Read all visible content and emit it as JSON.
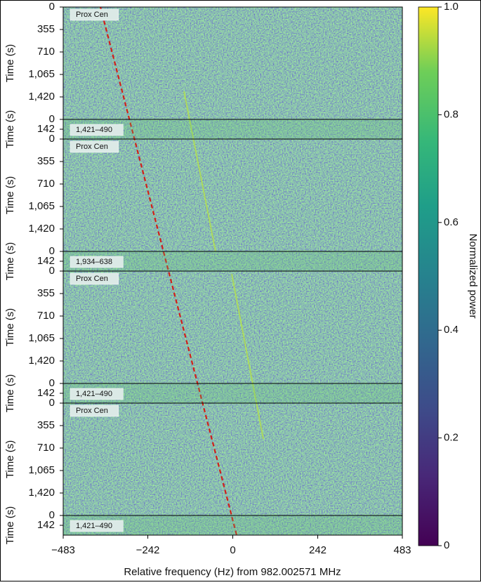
{
  "chart_data": {
    "type": "heatmap",
    "xlabel": "Relative frequency (Hz) from 982.002571 MHz",
    "xlim": [
      -483,
      483
    ],
    "xticks": [
      {
        "value": -483,
        "label": "−483"
      },
      {
        "value": -242,
        "label": "−242"
      },
      0,
      242,
      483
    ],
    "colorbar": {
      "label": "Normalized power",
      "lim": [
        0,
        1
      ],
      "ticks": [
        0,
        0.2,
        0.4,
        0.6,
        0.8,
        {
          "value": 1,
          "label": "1.0"
        }
      ]
    },
    "panels": [
      {
        "label": "Prox Cen",
        "ylabel": "Time (s)",
        "ylim": [
          0,
          1775
        ],
        "yticks": [
          0,
          355,
          710,
          {
            "value": 1065,
            "label": "1,065"
          },
          {
            "value": 1420,
            "label": "1,420"
          }
        ]
      },
      {
        "label": "1,421–490",
        "ylabel": "Time (s)",
        "ylim": [
          0,
          284
        ],
        "yticks": [
          0,
          142
        ]
      },
      {
        "label": "Prox Cen",
        "ylabel": "Time (s)",
        "ylim": [
          0,
          1775
        ],
        "yticks": [
          0,
          355,
          710,
          {
            "value": 1065,
            "label": "1,065"
          },
          {
            "value": 1420,
            "label": "1,420"
          }
        ]
      },
      {
        "label": "1,934–638",
        "ylabel": "Time (s)",
        "ylim": [
          0,
          284
        ],
        "yticks": [
          0,
          142
        ]
      },
      {
        "label": "Prox Cen",
        "ylabel": "Time (s)",
        "ylim": [
          0,
          1775
        ],
        "yticks": [
          0,
          355,
          710,
          {
            "value": 1065,
            "label": "1,065"
          },
          {
            "value": 1420,
            "label": "1,420"
          }
        ]
      },
      {
        "label": "1,421–490",
        "ylabel": "Time (s)",
        "ylim": [
          0,
          284
        ],
        "yticks": [
          0,
          142
        ]
      },
      {
        "label": "Prox Cen",
        "ylabel": "Time (s)",
        "ylim": [
          0,
          1775
        ],
        "yticks": [
          0,
          355,
          710,
          {
            "value": 1065,
            "label": "1,065"
          },
          {
            "value": 1420,
            "label": "1,420"
          }
        ]
      },
      {
        "label": "1,421–490",
        "ylabel": "Time (s)",
        "ylim": [
          0,
          284
        ],
        "yticks": [
          0,
          142
        ]
      }
    ]
  }
}
